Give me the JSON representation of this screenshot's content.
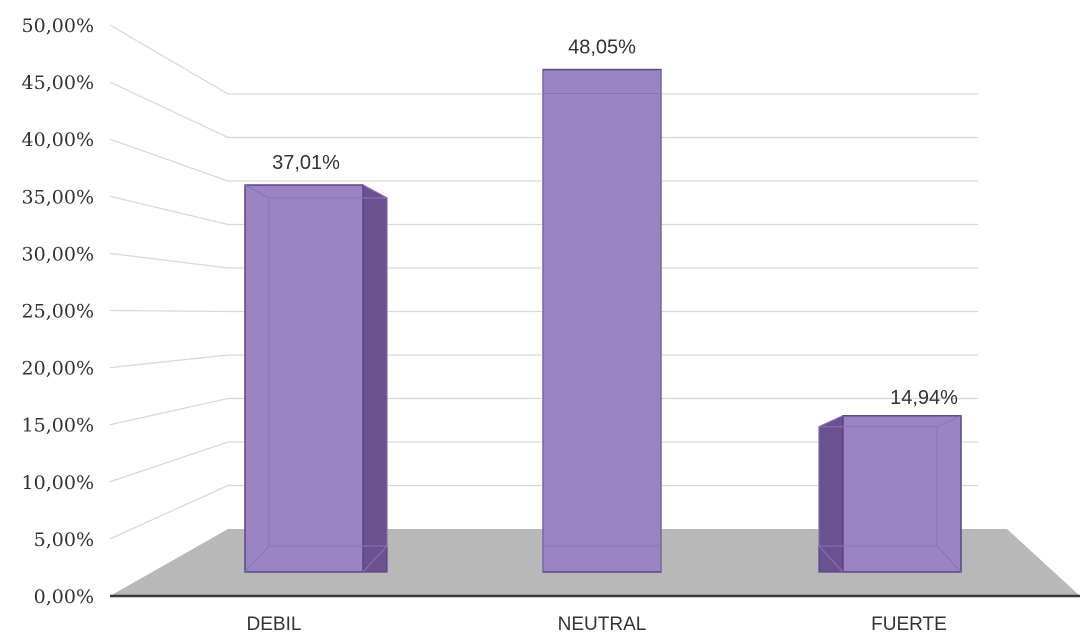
{
  "chart_data": {
    "type": "bar",
    "style": "3d-perspective",
    "categories": [
      "DEBIL",
      "NEUTRAL",
      "FUERTE"
    ],
    "values": [
      37.01,
      48.05,
      14.94
    ],
    "data_labels": [
      "37,01%",
      "48,05%",
      "14,94%"
    ],
    "y_ticks": [
      "0,00%",
      "5,00%",
      "10,00%",
      "15,00%",
      "20,00%",
      "25,00%",
      "30,00%",
      "35,00%",
      "40,00%",
      "45,00%",
      "50,00%"
    ],
    "ylim": [
      0,
      50
    ],
    "grid": true,
    "legend": "none",
    "title": "",
    "xlabel": "",
    "ylabel": ""
  },
  "colors": {
    "bar_front": "#9b84c4",
    "bar_side": "#6a5290",
    "bar_top": "#b6a3d8",
    "bar_edge": "#5b4585",
    "floor": "#b8b8b8",
    "grid": "#d9d9d9",
    "axis": "#3a3a3a"
  }
}
